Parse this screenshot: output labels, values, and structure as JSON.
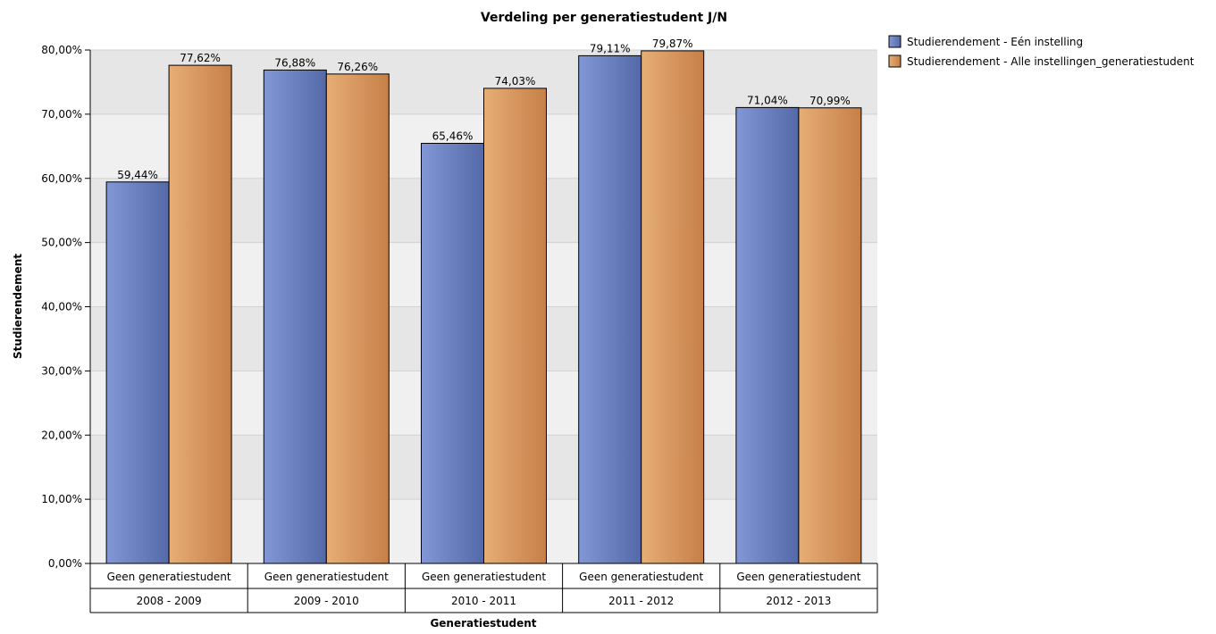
{
  "chart_data": {
    "type": "bar",
    "title": "Verdeling per generatiestudent J/N",
    "xlabel": "Generatiestudent",
    "ylabel": "Studierendement",
    "ylim": [
      0,
      80
    ],
    "y_ticks": [
      "0,00%",
      "10,00%",
      "20,00%",
      "30,00%",
      "40,00%",
      "50,00%",
      "60,00%",
      "70,00%",
      "80,00%"
    ],
    "grid": true,
    "legend_position": "top-right",
    "categories": [
      {
        "label": "Geen generatiestudent",
        "group": "2008 - 2009"
      },
      {
        "label": "Geen generatiestudent",
        "group": "2009 - 2010"
      },
      {
        "label": "Geen generatiestudent",
        "group": "2010 - 2011"
      },
      {
        "label": "Geen generatiestudent",
        "group": "2011 - 2012"
      },
      {
        "label": "Geen generatiestudent",
        "group": "2012 - 2013"
      }
    ],
    "series": [
      {
        "name": "Studierendement - Eén instelling",
        "color": "#6a7fbd",
        "values": [
          59.44,
          76.88,
          65.46,
          79.11,
          71.04
        ],
        "labels": [
          "59,44%",
          "76,88%",
          "65,46%",
          "79,11%",
          "71,04%"
        ]
      },
      {
        "name": "Studierendement - Alle instellingen_generatiestudent",
        "color": "#d8955a",
        "values": [
          77.62,
          76.26,
          74.03,
          79.87,
          70.99
        ],
        "labels": [
          "77,62%",
          "76,26%",
          "74,03%",
          "79,87%",
          "70,99%"
        ]
      }
    ]
  }
}
